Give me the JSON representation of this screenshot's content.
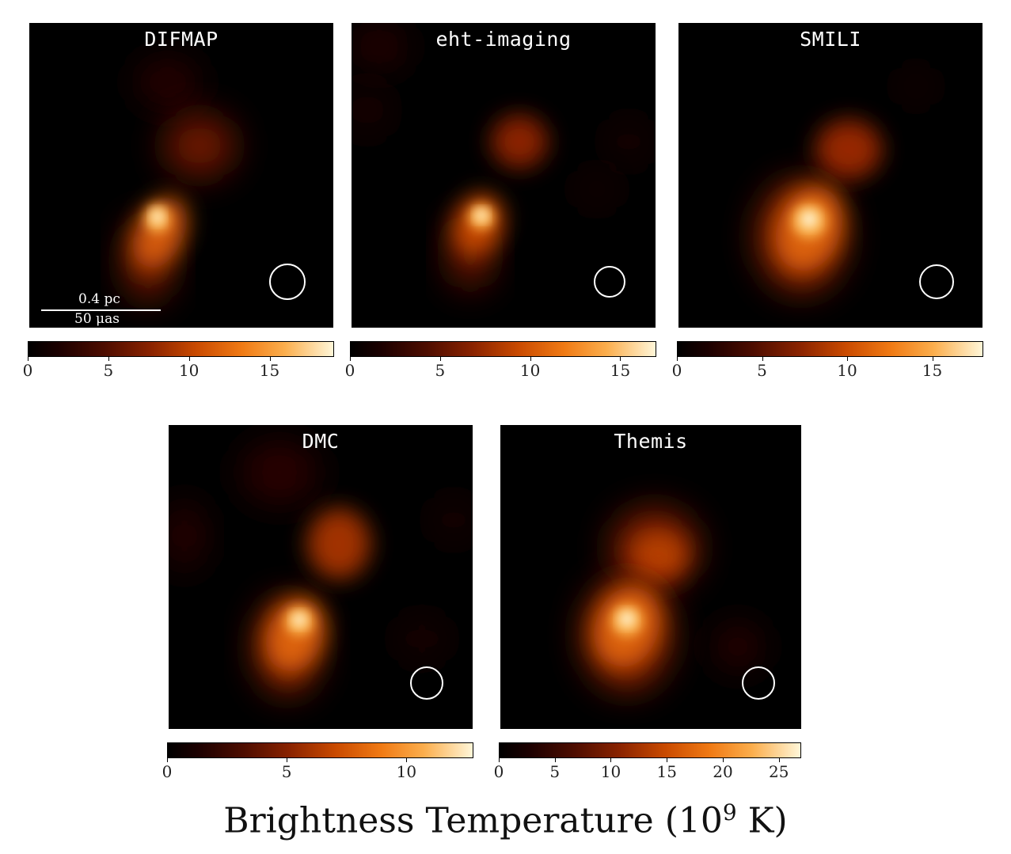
{
  "figure": {
    "caption": "Brightness Temperature (10",
    "caption_sup": "9",
    "caption_tail": " K)",
    "colormap": [
      "#000000",
      "#4e0d00",
      "#c94a00",
      "#fbae4d",
      "#fff6d8"
    ]
  },
  "panels": [
    {
      "title": "DIFMAP",
      "colorbar": {
        "min": 0,
        "max": 19,
        "ticks": [
          "0",
          "5",
          "10",
          "15"
        ],
        "tick_values": [
          0,
          5,
          10,
          15
        ]
      },
      "scalebar": {
        "top_label": "0.4 pc",
        "bottom_label": "50 μas"
      }
    },
    {
      "title": "eht-imaging",
      "colorbar": {
        "min": 0,
        "max": 17,
        "ticks": [
          "0",
          "5",
          "10",
          "15"
        ],
        "tick_values": [
          0,
          5,
          10,
          15
        ]
      }
    },
    {
      "title": "SMILI",
      "colorbar": {
        "min": 0,
        "max": 18,
        "ticks": [
          "0",
          "5",
          "10",
          "15"
        ],
        "tick_values": [
          0,
          5,
          10,
          15
        ]
      }
    },
    {
      "title": "DMC",
      "colorbar": {
        "min": 0,
        "max": 12.8,
        "ticks": [
          "0",
          "5",
          "10"
        ],
        "tick_values": [
          0,
          5,
          10
        ]
      }
    },
    {
      "title": "Themis",
      "colorbar": {
        "min": 0,
        "max": 27,
        "ticks": [
          "0",
          "5",
          "10",
          "15",
          "20",
          "25"
        ],
        "tick_values": [
          0,
          5,
          10,
          15,
          20,
          25
        ]
      }
    }
  ]
}
